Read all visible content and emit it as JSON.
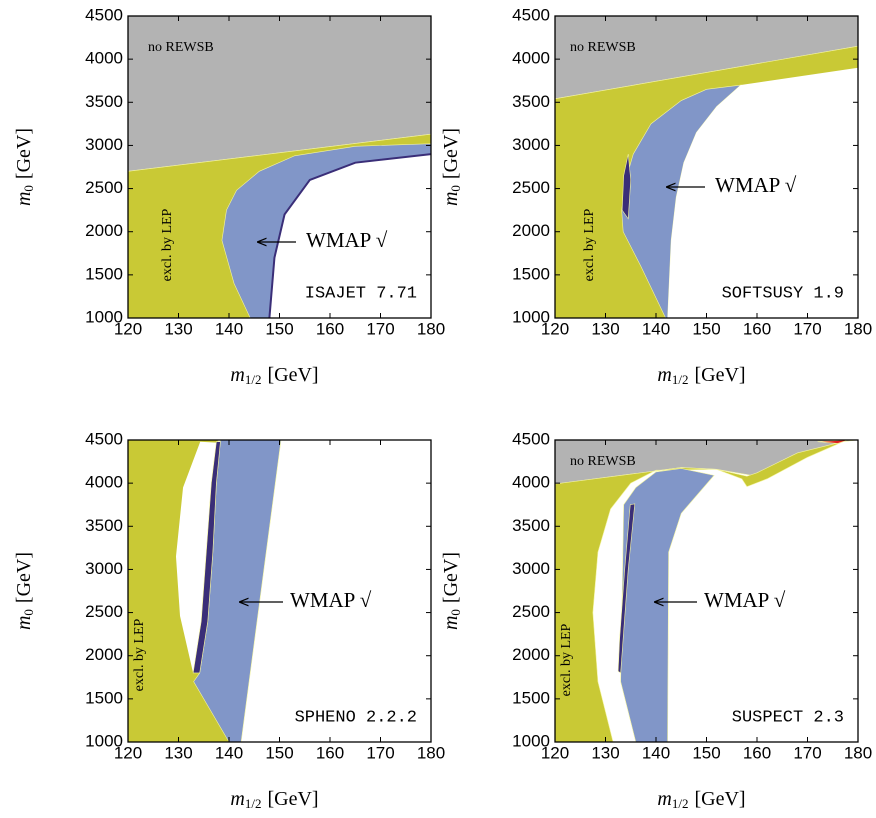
{
  "chart_data": [
    {
      "type": "region",
      "title": "ISAJET 7.71",
      "xlabel": {
        "var": "m",
        "sub": "1/2",
        "unit": "[GeV]"
      },
      "ylabel": {
        "var": "m",
        "sub": "0",
        "unit": "[GeV]"
      },
      "xlim": [
        120,
        180
      ],
      "ylim": [
        1000,
        4500
      ],
      "xticks": [
        120,
        130,
        140,
        150,
        160,
        170,
        180
      ],
      "yticks": [
        1000,
        1500,
        2000,
        2500,
        3000,
        3500,
        4000,
        4500
      ],
      "annotations": [
        "no REWSB",
        "excl. by LEP",
        "WMAP √"
      ],
      "regions": [
        {
          "color": "#b3b3b3",
          "x": [
            120,
            180,
            180,
            120
          ],
          "y": [
            4500,
            4500,
            3130,
            2700
          ]
        },
        {
          "color": "#c9c935",
          "x": [
            120,
            180,
            180,
            120
          ],
          "y": [
            2700,
            3130,
            1000,
            1000
          ]
        },
        {
          "color": "#8196c8",
          "x": [
            144.2,
            141,
            138.6,
            139.5,
            141.5,
            146,
            153,
            165,
            180,
            180,
            165,
            156,
            151,
            149,
            148
          ],
          "y": [
            1000,
            1400,
            1900,
            2250,
            2480,
            2700,
            2880,
            2990,
            3020,
            2900,
            2800,
            2600,
            2200,
            1700,
            1000
          ]
        },
        {
          "color": "#ffffff",
          "x": [
            148,
            149,
            151,
            156,
            165,
            180,
            180
          ],
          "y": [
            1000,
            1700,
            2200,
            2600,
            2800,
            2900,
            1000
          ]
        },
        {
          "color": "#3a2e78",
          "line": true,
          "x": [
            148,
            149,
            151,
            156,
            165,
            180
          ],
          "y": [
            1000,
            1700,
            2200,
            2600,
            2800,
            2900
          ]
        }
      ]
    },
    {
      "type": "region",
      "title": "SOFTSUSY 1.9",
      "xlabel": {
        "var": "m",
        "sub": "1/2",
        "unit": "[GeV]"
      },
      "ylabel": {
        "var": "m",
        "sub": "0",
        "unit": "[GeV]"
      },
      "xlim": [
        120,
        180
      ],
      "ylim": [
        1000,
        4500
      ],
      "xticks": [
        120,
        130,
        140,
        150,
        160,
        170,
        180
      ],
      "yticks": [
        1000,
        1500,
        2000,
        2500,
        3000,
        3500,
        4000,
        4500
      ],
      "annotations": [
        "no REWSB",
        "excl. by LEP",
        "WMAP √"
      ],
      "regions": [
        {
          "color": "#b3b3b3",
          "x": [
            120,
            180,
            180,
            120
          ],
          "y": [
            4500,
            4500,
            4150,
            3540
          ]
        },
        {
          "color": "#c9c935",
          "x": [
            120,
            180,
            180,
            120
          ],
          "y": [
            3540,
            4150,
            1000,
            1000
          ]
        },
        {
          "color": "#8196c8",
          "x": [
            141.9,
            137,
            133.5,
            133.2,
            134,
            135.5,
            139,
            145,
            150,
            156.8,
            152,
            148,
            145.5,
            144,
            143,
            142.3
          ],
          "y": [
            1000,
            1600,
            2000,
            2250,
            2600,
            2900,
            3250,
            3520,
            3650,
            3700,
            3450,
            3150,
            2800,
            2400,
            1900,
            1000
          ]
        },
        {
          "color": "#ffffff",
          "x": [
            142.3,
            143,
            144,
            145.5,
            148,
            152,
            156.8,
            180,
            180
          ],
          "y": [
            1000,
            1900,
            2400,
            2800,
            3150,
            3450,
            3700,
            3900,
            1000
          ]
        },
        {
          "color": "#3a2e78",
          "x": [
            133.3,
            133.6,
            134.5,
            135,
            134.5
          ],
          "y": [
            2250,
            2650,
            2900,
            2600,
            2150
          ]
        }
      ]
    },
    {
      "type": "region",
      "title": "SPHENO 2.2.2",
      "xlabel": {
        "var": "m",
        "sub": "1/2",
        "unit": "[GeV]"
      },
      "ylabel": {
        "var": "m",
        "sub": "0",
        "unit": "[GeV]"
      },
      "xlim": [
        120,
        180
      ],
      "ylim": [
        1000,
        4500
      ],
      "xticks": [
        120,
        130,
        140,
        150,
        160,
        170,
        180
      ],
      "yticks": [
        1000,
        1500,
        2000,
        2500,
        3000,
        3500,
        4000,
        4500
      ],
      "annotations": [
        "excl. by LEP",
        "WMAP √"
      ],
      "regions": [
        {
          "color": "#c9c935",
          "x": [
            120,
            137.8,
            140,
            120
          ],
          "y": [
            4500,
            4500,
            1000,
            1000
          ]
        },
        {
          "color": "#ffffff",
          "x": [
            134.3,
            130.9,
            129.5,
            130.3,
            132.9,
            134.5,
            135.5,
            136.5,
            137.5
          ],
          "y": [
            4480,
            3950,
            3150,
            2460,
            1800,
            2400,
            3200,
            4000,
            4470
          ]
        },
        {
          "color": "#8196c8",
          "x": [
            138.3,
            150.3,
            142.4,
            140,
            133,
            134.2,
            135.8,
            136.8,
            137.5
          ],
          "y": [
            4500,
            4500,
            1000,
            1000,
            1700,
            1800,
            2400,
            3200,
            4000
          ]
        },
        {
          "color": "#3a2e78",
          "x": [
            132.9,
            134.5,
            135.5,
            136.5,
            137.5,
            138.3,
            137.5,
            136.8,
            135.8,
            134.2
          ],
          "y": [
            1800,
            2400,
            3200,
            4000,
            4480,
            4480,
            4000,
            3200,
            2400,
            1800
          ]
        }
      ]
    },
    {
      "type": "region",
      "title": "SUSPECT 2.3",
      "xlabel": {
        "var": "m",
        "sub": "1/2",
        "unit": "[GeV]"
      },
      "ylabel": {
        "var": "m",
        "sub": "0",
        "unit": "[GeV]"
      },
      "xlim": [
        120,
        180
      ],
      "ylim": [
        1000,
        4500
      ],
      "xticks": [
        120,
        130,
        140,
        150,
        160,
        170,
        180
      ],
      "yticks": [
        1000,
        1500,
        2000,
        2500,
        3000,
        3500,
        4000,
        4500
      ],
      "annotations": [
        "no REWSB",
        "excl. by LEP",
        "WMAP √"
      ],
      "regions": [
        {
          "color": "#b3b3b3",
          "x": [
            120,
            180,
            177,
            170,
            160,
            152,
            145,
            120
          ],
          "y": [
            4500,
            4500,
            4480,
            4300,
            4080,
            4160,
            4180,
            3990
          ]
        },
        {
          "color": "#c9c935",
          "x": [
            120,
            145,
            152,
            140,
            135,
            131,
            128.5,
            127.5,
            128.5,
            131.5,
            120
          ],
          "y": [
            3990,
            4180,
            4160,
            4150,
            4000,
            3700,
            3200,
            2500,
            1700,
            1000,
            1000
          ]
        },
        {
          "color": "#c9c935",
          "x": [
            152,
            157,
            158,
            162,
            170,
            177,
            168,
            160,
            158
          ],
          "y": [
            4160,
            4050,
            3960,
            4050,
            4300,
            4480,
            4350,
            4120,
            4080
          ]
        },
        {
          "color": "#8196c8",
          "x": [
            133.6,
            136,
            140,
            145,
            151.5,
            145,
            142.5,
            142.3,
            136,
            133
          ],
          "y": [
            3750,
            3950,
            4130,
            4170,
            4090,
            3650,
            3200,
            1000,
            1000,
            1700
          ]
        },
        {
          "color": "#3a2e78",
          "x": [
            132.5,
            132.8,
            133.8,
            134.9,
            135.8,
            134.5,
            133.5,
            133
          ],
          "y": [
            1820,
            2200,
            3000,
            3750,
            3760,
            3000,
            2200,
            1800
          ]
        },
        {
          "color": "#e02020",
          "x": [
            172,
            176,
            178
          ],
          "y": [
            4480,
            4460,
            4500
          ]
        }
      ]
    }
  ]
}
